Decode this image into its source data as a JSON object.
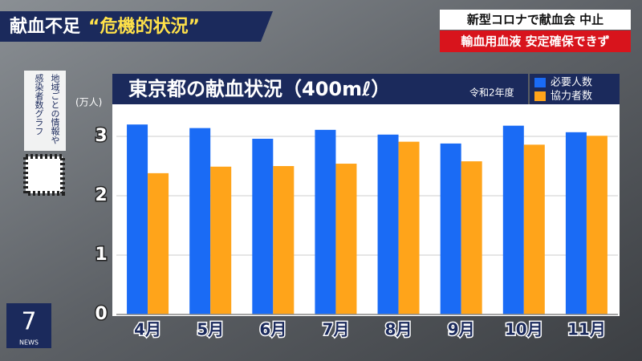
{
  "headline": {
    "main": "献血不足",
    "quote": "“危機的状況”"
  },
  "topics": [
    "新型コロナで献血会 中止",
    "輸血用血液 安定確保できず"
  ],
  "side_note": [
    "地域ごとの情報や",
    "感染者数グラフ"
  ],
  "logo": {
    "number": "7",
    "text": "NEWS"
  },
  "chart_data": {
    "type": "bar",
    "title": "東京都の献血状況（400mℓ）",
    "subtitle": "令和2年度",
    "y_label": "(万人)",
    "categories": [
      "4月",
      "5月",
      "6月",
      "7月",
      "8月",
      "9月",
      "10月",
      "11月"
    ],
    "series": [
      {
        "name": "必要人数",
        "color": "#1a6bf5",
        "values": [
          3.2,
          3.14,
          2.96,
          3.11,
          3.03,
          2.88,
          3.18,
          3.07
        ]
      },
      {
        "name": "協力者数",
        "color": "#ffa41a",
        "values": [
          2.38,
          2.49,
          2.5,
          2.54,
          2.91,
          2.58,
          2.86,
          3.01
        ]
      }
    ],
    "ylim": [
      0,
      3.5
    ],
    "yticks": [
      0,
      1,
      2,
      3
    ],
    "grid": true,
    "legend": "top-right"
  }
}
